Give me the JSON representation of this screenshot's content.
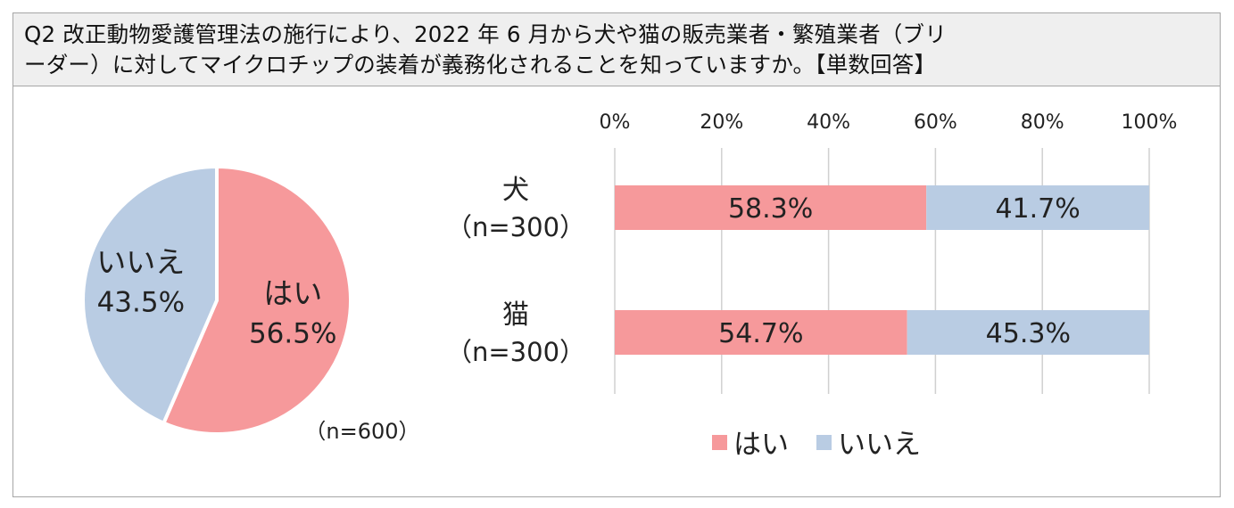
{
  "question": {
    "line1": "Q2 改正動物愛護管理法の施行により、2022 年 6 月から犬や猫の販売業者・繁殖業者（ブリ",
    "line2": "ーダー）に対してマイクロチップの装着が義務化されることを知っていますか。【単数回答】"
  },
  "colors": {
    "yes": "#f6999b",
    "no": "#b9cce3",
    "grid": "#d0d0d0"
  },
  "chart_data": [
    {
      "type": "pie",
      "note": "（n=600）",
      "slices": [
        {
          "label": "はい",
          "value": 56.5,
          "value_label": "56.5%",
          "color": "#f6999b"
        },
        {
          "label": "いいえ",
          "value": 43.5,
          "value_label": "43.5%",
          "color": "#b9cce3"
        }
      ]
    },
    {
      "type": "bar",
      "orientation": "horizontal",
      "stacked": true,
      "xlim": [
        0,
        100
      ],
      "ticks": [
        "0%",
        "20%",
        "40%",
        "60%",
        "80%",
        "100%"
      ],
      "categories": [
        {
          "name": "犬",
          "n": "（n=300）"
        },
        {
          "name": "猫",
          "n": "（n=300）"
        }
      ],
      "series": [
        {
          "name": "はい",
          "values": [
            58.3,
            54.7
          ],
          "labels": [
            "58.3%",
            "54.7%"
          ],
          "color": "#f6999b"
        },
        {
          "name": "いいえ",
          "values": [
            41.7,
            45.3
          ],
          "labels": [
            "41.7%",
            "45.3%"
          ],
          "color": "#b9cce3"
        }
      ],
      "legend": {
        "position": "bottom",
        "items": [
          "はい",
          "いいえ"
        ]
      },
      "grid": true
    }
  ]
}
